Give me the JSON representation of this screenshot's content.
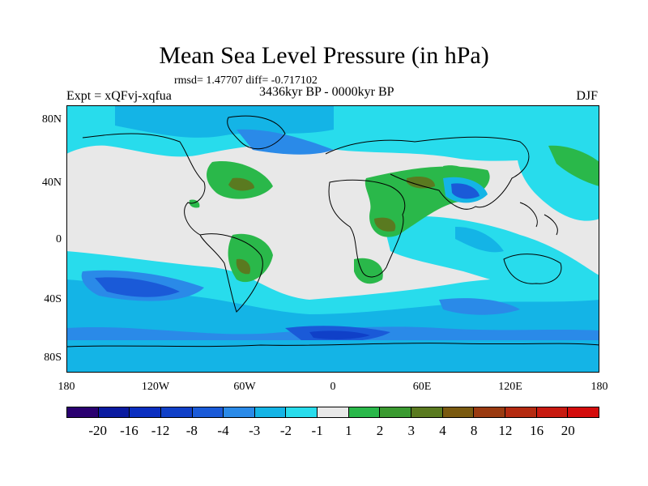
{
  "title": "Mean Sea Level Pressure (in hPa)",
  "subtitle": "rmsd= 1.47707 diff= -0.717102",
  "left_label": "Expt = xQFvj-xqfua",
  "center_label": "3436kyr BP - 0000kyr BP",
  "right_label": "DJF",
  "lat_labels": [
    "80N",
    "40N",
    "0",
    "40S",
    "80S"
  ],
  "lon_labels": [
    "180",
    "120W",
    "60W",
    "0",
    "60E",
    "120E",
    "180"
  ],
  "colorbar": {
    "colors": [
      "#2a0070",
      "#0a1aa0",
      "#0a2ec0",
      "#1040c8",
      "#1a5ad8",
      "#2a8ae8",
      "#14b4e6",
      "#28dcec",
      "#e8e8e8",
      "#2ab84a",
      "#3a9a30",
      "#5a7a20",
      "#7a5a10",
      "#9a3a10",
      "#b42a10",
      "#c81a10",
      "#d40c0c"
    ],
    "labels": [
      "-20",
      "-16",
      "-12",
      "-8",
      "-4",
      "-3",
      "-2",
      "-1",
      "1",
      "2",
      "3",
      "4",
      "8",
      "12",
      "16",
      "20"
    ]
  },
  "field_colors": {
    "neutral": "#e8e8e8",
    "cyan": "#28dcec",
    "light_blue": "#14b4e6",
    "mid_blue": "#2a8ae8",
    "deep_blue": "#1a5ad8",
    "dark_blue": "#1040c8",
    "green": "#2ab84a",
    "olive": "#5a7a20"
  }
}
